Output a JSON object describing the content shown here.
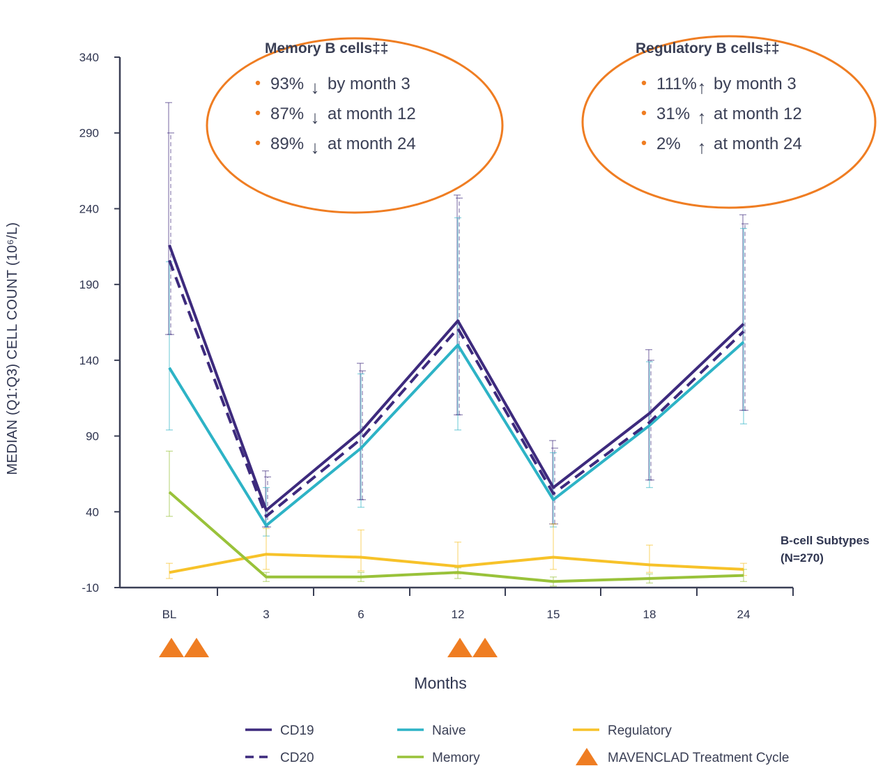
{
  "chart_data": {
    "type": "line",
    "ylabel": "MEDIAN (Q1:Q3) CELL COUNT (10⁶/L)",
    "xlabel": "Months",
    "categories": [
      "BL",
      "3",
      "6",
      "12",
      "15",
      "18",
      "24"
    ],
    "yticks": [
      340,
      290,
      240,
      190,
      140,
      90,
      40,
      -10
    ],
    "ylim": [
      -10,
      340
    ],
    "grid": false,
    "legend_placement": "bottom",
    "series": [
      {
        "name": "CD19",
        "color": "#3d2a7d",
        "dash": false,
        "values": [
          216,
          41,
          93,
          166,
          56,
          105,
          164
        ],
        "q1": [
          157,
          30,
          48,
          104,
          32,
          61,
          107
        ],
        "q3": [
          310,
          67,
          138,
          249,
          87,
          147,
          236
        ]
      },
      {
        "name": "CD20",
        "color": "#3d2a7d",
        "dash": true,
        "values": [
          206,
          37,
          88,
          161,
          52,
          99,
          159
        ],
        "q1": [
          157,
          30,
          48,
          104,
          32,
          61,
          107
        ],
        "q3": [
          290,
          63,
          133,
          247,
          82,
          140,
          230
        ]
      },
      {
        "name": "Naive",
        "color": "#2db3c6",
        "dash": false,
        "values": [
          135,
          31,
          82,
          150,
          48,
          97,
          152
        ],
        "q1": [
          94,
          24,
          43,
          94,
          30,
          56,
          98
        ],
        "q3": [
          205,
          56,
          131,
          234,
          79,
          139,
          227
        ]
      },
      {
        "name": "Regulatory",
        "color": "#f7c229",
        "dash": false,
        "values": [
          0,
          12,
          10,
          4,
          10,
          5,
          2
        ],
        "q1": [
          -4,
          2,
          1,
          -1,
          2,
          0,
          -2
        ],
        "q3": [
          6,
          29,
          28,
          20,
          32,
          18,
          6
        ]
      },
      {
        "name": "Memory",
        "color": "#99c23a",
        "dash": false,
        "values": [
          53,
          -3,
          -3,
          0,
          -6,
          -4,
          -2
        ],
        "q1": [
          37,
          -6,
          -6,
          -4,
          -9,
          -7,
          -6
        ],
        "q3": [
          80,
          0,
          0,
          3,
          -3,
          -1,
          2
        ]
      }
    ],
    "treatment_markers": [
      "BL",
      "12"
    ],
    "annotations": [
      {
        "title": "Memory B cells‡‡",
        "items": [
          {
            "pct": "93%",
            "arrow": "↓",
            "text": "by month 3"
          },
          {
            "pct": "87%",
            "arrow": "↓",
            "text": "at month 12"
          },
          {
            "pct": "89%",
            "arrow": "↓",
            "text": "at month 24"
          }
        ]
      },
      {
        "title": "Regulatory B cells‡‡",
        "items": [
          {
            "pct": "111%",
            "arrow": "↑",
            "text": "by month 3"
          },
          {
            "pct": "31%",
            "arrow": "↑",
            "text": "at month 12"
          },
          {
            "pct": "2%",
            "arrow": "↑",
            "text": "at month 24"
          }
        ]
      }
    ],
    "subtype_note": [
      "B-cell Subtypes",
      "(N=270)"
    ]
  },
  "legend": [
    {
      "label": "CD19",
      "color": "#3d2a7d",
      "style": "solid"
    },
    {
      "label": "Naive",
      "color": "#2db3c6",
      "style": "solid"
    },
    {
      "label": "Regulatory",
      "color": "#f7c229",
      "style": "solid"
    },
    {
      "label": "CD20",
      "color": "#3d2a7d",
      "style": "dashed"
    },
    {
      "label": "Memory",
      "color": "#99c23a",
      "style": "solid"
    },
    {
      "label": "MAVENCLAD Treatment Cycle",
      "color": "#ef7d22",
      "style": "triangle"
    }
  ],
  "colors": {
    "accent_orange": "#ef7d22",
    "axis": "#3a3f55"
  }
}
